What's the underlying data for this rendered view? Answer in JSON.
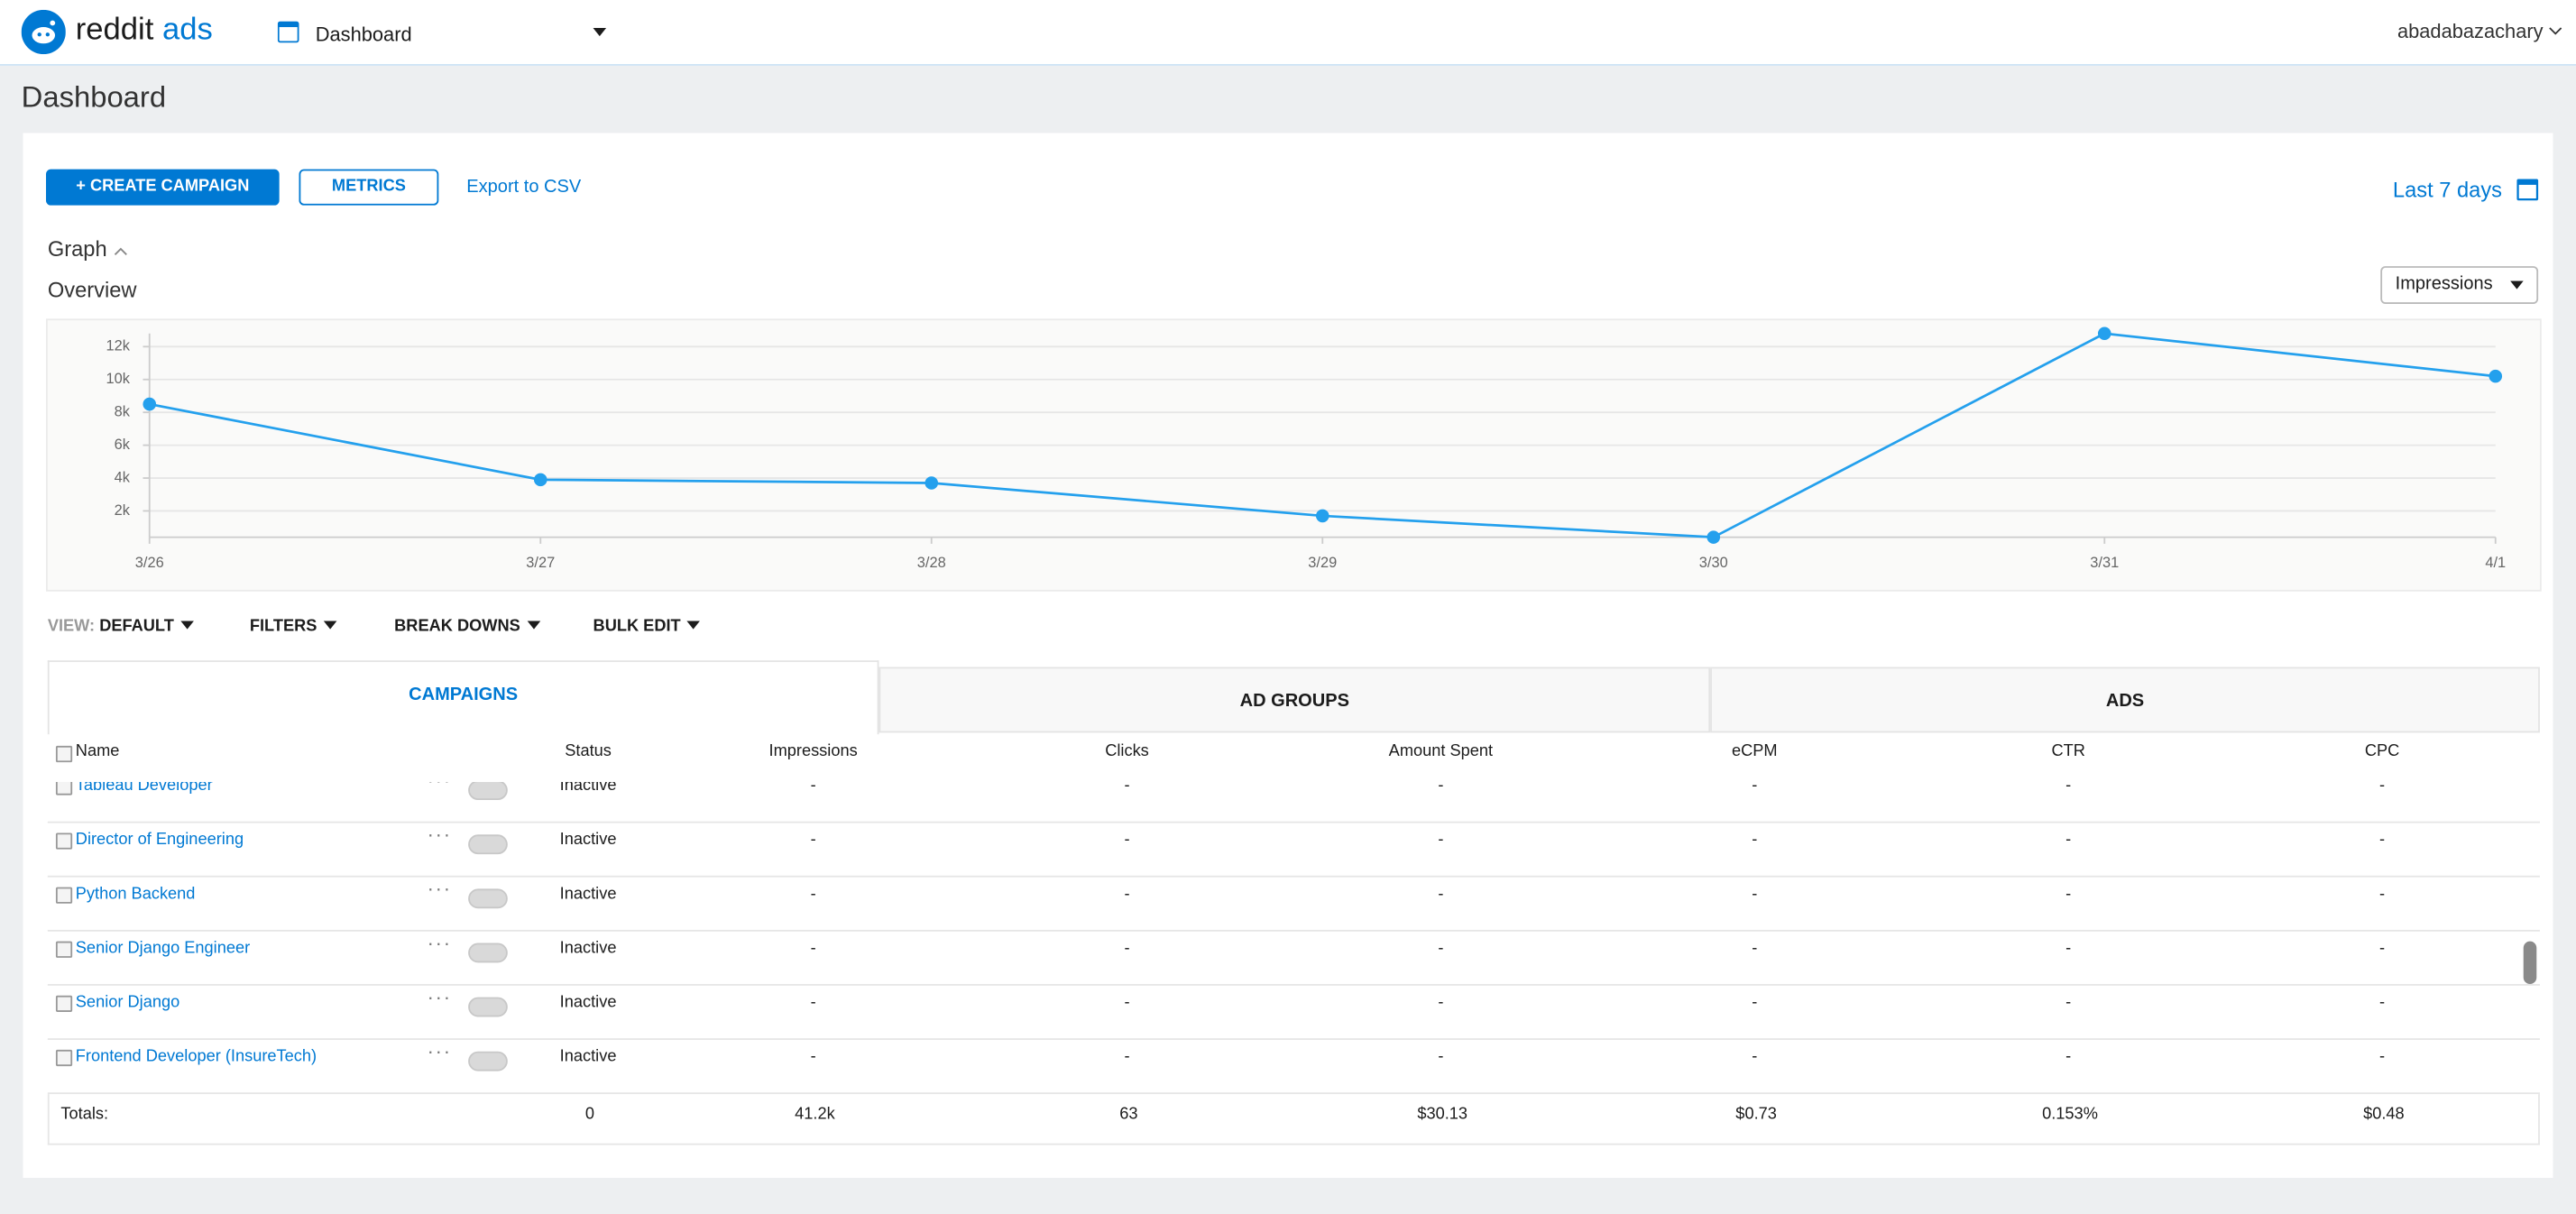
{
  "header": {
    "brand": "reddit",
    "brand_suffix": "ads",
    "nav": "Dashboard",
    "user": "abadabazachary"
  },
  "page_title": "Dashboard",
  "toolbar": {
    "create": "+ CREATE CAMPAIGN",
    "metrics": "METRICS",
    "export": "Export to CSV",
    "date_range": "Last 7 days"
  },
  "graph_section": {
    "title": "Graph",
    "subtitle": "Overview",
    "metric_select": "Impressions"
  },
  "chart_data": {
    "type": "line",
    "categories": [
      "3/26",
      "3/27",
      "3/28",
      "3/29",
      "3/30",
      "3/31",
      "4/1"
    ],
    "values": [
      8500,
      3900,
      3700,
      1700,
      400,
      12800,
      10200
    ],
    "color": "#24a0ed",
    "ylim": [
      400,
      12800
    ],
    "yticks": [
      {
        "value": 2000,
        "label": "2k"
      },
      {
        "value": 4000,
        "label": "4k"
      },
      {
        "value": 6000,
        "label": "6k"
      },
      {
        "value": 8000,
        "label": "8k"
      },
      {
        "value": 10000,
        "label": "10k"
      },
      {
        "value": 12000,
        "label": "12k"
      }
    ],
    "grid": true
  },
  "filters": {
    "view_label": "VIEW:",
    "view": "DEFAULT",
    "filters": "FILTERS",
    "breakdowns": "BREAK DOWNS",
    "bulk_edit": "BULK EDIT"
  },
  "tabs": [
    "CAMPAIGNS",
    "AD GROUPS",
    "ADS"
  ],
  "table": {
    "columns": [
      "Name",
      "Status",
      "Impressions",
      "Clicks",
      "Amount Spent",
      "eCPM",
      "CTR",
      "CPC"
    ],
    "rows": [
      [
        "Tableau Developer",
        "Inactive",
        "-",
        "-",
        "-",
        "-",
        "-",
        "-"
      ],
      [
        "Director of Engineering",
        "Inactive",
        "-",
        "-",
        "-",
        "-",
        "-",
        "-"
      ],
      [
        "Python Backend",
        "Inactive",
        "-",
        "-",
        "-",
        "-",
        "-",
        "-"
      ],
      [
        "Senior Django Engineer",
        "Inactive",
        "-",
        "-",
        "-",
        "-",
        "-",
        "-"
      ],
      [
        "Senior Django",
        "Inactive",
        "-",
        "-",
        "-",
        "-",
        "-",
        "-"
      ],
      [
        "Frontend Developer (InsureTech)",
        "Inactive",
        "-",
        "-",
        "-",
        "-",
        "-",
        "-"
      ]
    ],
    "totals": [
      "Totals:",
      "0",
      "41.2k",
      "63",
      "$30.13",
      "$0.73",
      "0.153%",
      "$0.48"
    ]
  }
}
